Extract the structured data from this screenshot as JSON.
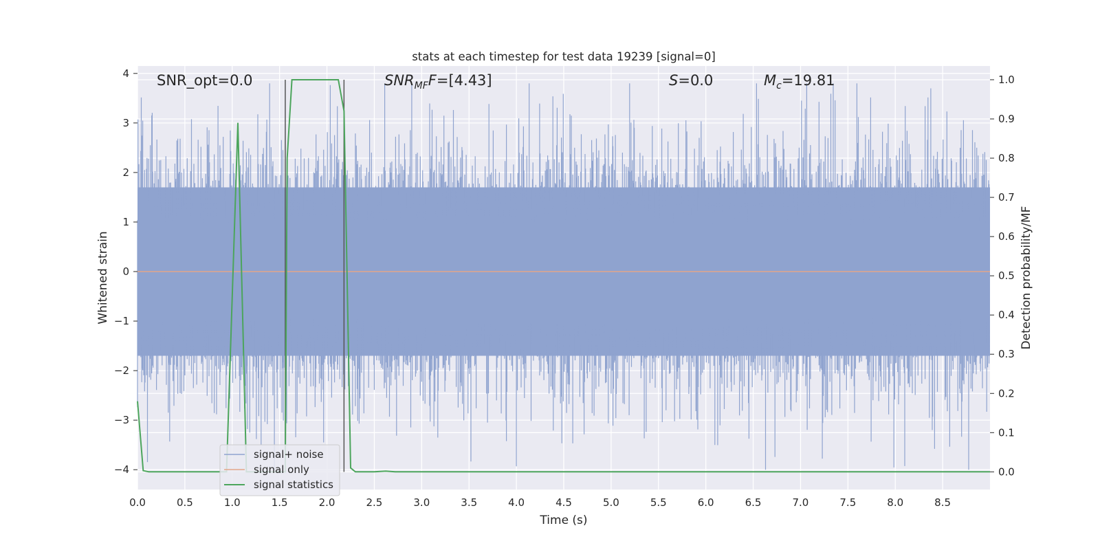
{
  "chart_data": {
    "type": "line",
    "title": "stats at each timestep for test data 19239 [signal=0]",
    "xlabel": "Time (s)",
    "ylabel": "Whitened strain",
    "y2label": "Detection probability/MF",
    "xlim": [
      0.0,
      9.0
    ],
    "ylim": [
      -4.4,
      4.15
    ],
    "y2lim": [
      -0.045,
      1.035
    ],
    "x_ticks": [
      "0.0",
      "0.5",
      "1.0",
      "1.5",
      "2.0",
      "2.5",
      "3.0",
      "3.5",
      "4.0",
      "4.5",
      "5.0",
      "5.5",
      "6.0",
      "6.5",
      "7.0",
      "7.5",
      "8.0",
      "8.5"
    ],
    "y_ticks": [
      "4",
      "3",
      "2",
      "1",
      "0",
      "−1",
      "−2",
      "−3",
      "−4"
    ],
    "y2_ticks": [
      "1.0",
      "0.9",
      "0.8",
      "0.7",
      "0.6",
      "0.5",
      "0.4",
      "0.3",
      "0.2",
      "0.1",
      "0.0"
    ],
    "grid": true,
    "legend_position": "lower-left",
    "annotations": {
      "snr_opt": "SNR_opt=0.0",
      "snr_mf_main": "SNR",
      "snr_mf_sub": "MF",
      "snr_mf_value": "=[4.43]",
      "s_main": "S",
      "s_value": "=0.0",
      "mc_main": "M",
      "mc_sub": "c",
      "mc_value": "=19.81"
    },
    "vertical_markers_x": [
      1.56,
      2.18
    ],
    "series": [
      {
        "name": "signal+ noise",
        "color": "#8fa3cf",
        "axis": "left",
        "description_values": {
          "typical_range": [
            -1.7,
            1.7
          ],
          "max": 3.8,
          "min": -4.0,
          "n_samples_approx": 1800
        }
      },
      {
        "name": "signal only",
        "color": "#e3a68a",
        "axis": "left",
        "x": [
          0.0,
          9.0
        ],
        "y": [
          0.0,
          0.0
        ]
      },
      {
        "name": "signal statistics",
        "color": "#4ca55c",
        "axis": "right",
        "x": [
          0.0,
          0.06,
          0.12,
          0.5,
          0.94,
          1.06,
          1.12,
          1.15,
          1.5,
          1.56,
          1.58,
          1.63,
          2.12,
          2.18,
          2.25,
          2.3,
          2.5,
          2.62,
          2.72,
          9.0
        ],
        "y": [
          0.18,
          0.003,
          0.0,
          0.0,
          0.0,
          0.89,
          0.3,
          0.0,
          0.0,
          0.0,
          0.8,
          1.0,
          1.0,
          0.92,
          0.01,
          0.0,
          0.0,
          0.002,
          0.0,
          0.0
        ]
      }
    ]
  }
}
